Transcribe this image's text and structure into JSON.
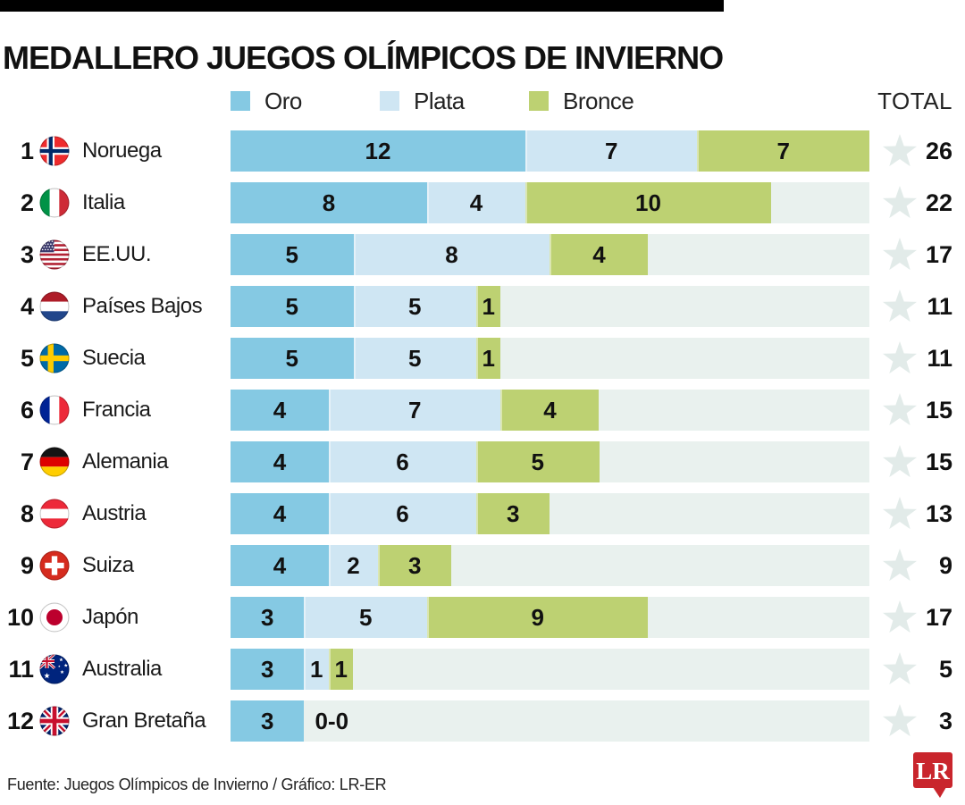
{
  "title": "MEDALLERO JUEGOS OLÍMPICOS DE INVIERNO",
  "legend": {
    "items": [
      {
        "label": "Oro",
        "color": "#85c9e3",
        "icon": "oro-swatch"
      },
      {
        "label": "Plata",
        "color": "#cfe6f3",
        "icon": "plata-swatch"
      },
      {
        "label": "Bronce",
        "color": "#bdd172",
        "icon": "bronce-swatch"
      }
    ],
    "total_label": "TOTAL"
  },
  "colors": {
    "oro": "#85c9e3",
    "plata": "#cfe6f3",
    "bronce": "#bdd172",
    "track": "#e9f1ee",
    "star": "#e2ebe9",
    "logo_red": "#c9252c",
    "top_bar": "#000000"
  },
  "chart_data": {
    "type": "bar",
    "stacked": true,
    "orientation": "horizontal",
    "title": "MEDALLERO JUEGOS OLÍMPICOS DE INVIERNO",
    "series_names": [
      "Oro",
      "Plata",
      "Bronce"
    ],
    "max_scale": 26,
    "categories": [
      "Noruega",
      "Italia",
      "EE.UU.",
      "Países Bajos",
      "Suecia",
      "Francia",
      "Alemania",
      "Austria",
      "Suiza",
      "Japón",
      "Australia",
      "Gran Bretaña"
    ],
    "series": [
      {
        "name": "Oro",
        "values": [
          12,
          8,
          5,
          5,
          5,
          4,
          4,
          4,
          4,
          3,
          3,
          3
        ]
      },
      {
        "name": "Plata",
        "values": [
          7,
          4,
          8,
          5,
          5,
          7,
          6,
          6,
          2,
          5,
          1,
          0
        ]
      },
      {
        "name": "Bronce",
        "values": [
          7,
          10,
          4,
          1,
          1,
          4,
          5,
          3,
          3,
          9,
          1,
          0
        ]
      }
    ],
    "totals": [
      26,
      22,
      17,
      11,
      11,
      15,
      15,
      13,
      9,
      17,
      5,
      3
    ],
    "rows": [
      {
        "rank": "1",
        "country": "Noruega",
        "flag": "norway",
        "oro": 12,
        "plata": 7,
        "bronce": 7,
        "total": 26
      },
      {
        "rank": "2",
        "country": "Italia",
        "flag": "italy",
        "oro": 8,
        "plata": 4,
        "bronce": 10,
        "total": 22
      },
      {
        "rank": "3",
        "country": "EE.UU.",
        "flag": "usa",
        "oro": 5,
        "plata": 8,
        "bronce": 4,
        "total": 17
      },
      {
        "rank": "4",
        "country": "Países Bajos",
        "flag": "netherlands",
        "oro": 5,
        "plata": 5,
        "bronce": 1,
        "total": 11
      },
      {
        "rank": "5",
        "country": "Suecia",
        "flag": "sweden",
        "oro": 5,
        "plata": 5,
        "bronce": 1,
        "total": 11
      },
      {
        "rank": "6",
        "country": "Francia",
        "flag": "france",
        "oro": 4,
        "plata": 7,
        "bronce": 4,
        "total": 15
      },
      {
        "rank": "7",
        "country": "Alemania",
        "flag": "germany",
        "oro": 4,
        "plata": 6,
        "bronce": 5,
        "total": 15
      },
      {
        "rank": "8",
        "country": "Austria",
        "flag": "austria",
        "oro": 4,
        "plata": 6,
        "bronce": 3,
        "total": 13
      },
      {
        "rank": "9",
        "country": "Suiza",
        "flag": "switzerland",
        "oro": 4,
        "plata": 2,
        "bronce": 3,
        "total": 9
      },
      {
        "rank": "10",
        "country": "Japón",
        "flag": "japan",
        "oro": 3,
        "plata": 5,
        "bronce": 9,
        "total": 17
      },
      {
        "rank": "11",
        "country": "Australia",
        "flag": "australia",
        "oro": 3,
        "plata": 1,
        "bronce": 1,
        "total": 5
      },
      {
        "rank": "12",
        "country": "Gran Bretaña",
        "flag": "uk",
        "oro": 3,
        "plata": 0,
        "bronce": 0,
        "total": 3,
        "zero_display": "0-0"
      }
    ]
  },
  "footer": {
    "source": "Fuente: Juegos Olímpicos de Invierno / Gráfico: LR-ER",
    "logo_text": "LR"
  }
}
